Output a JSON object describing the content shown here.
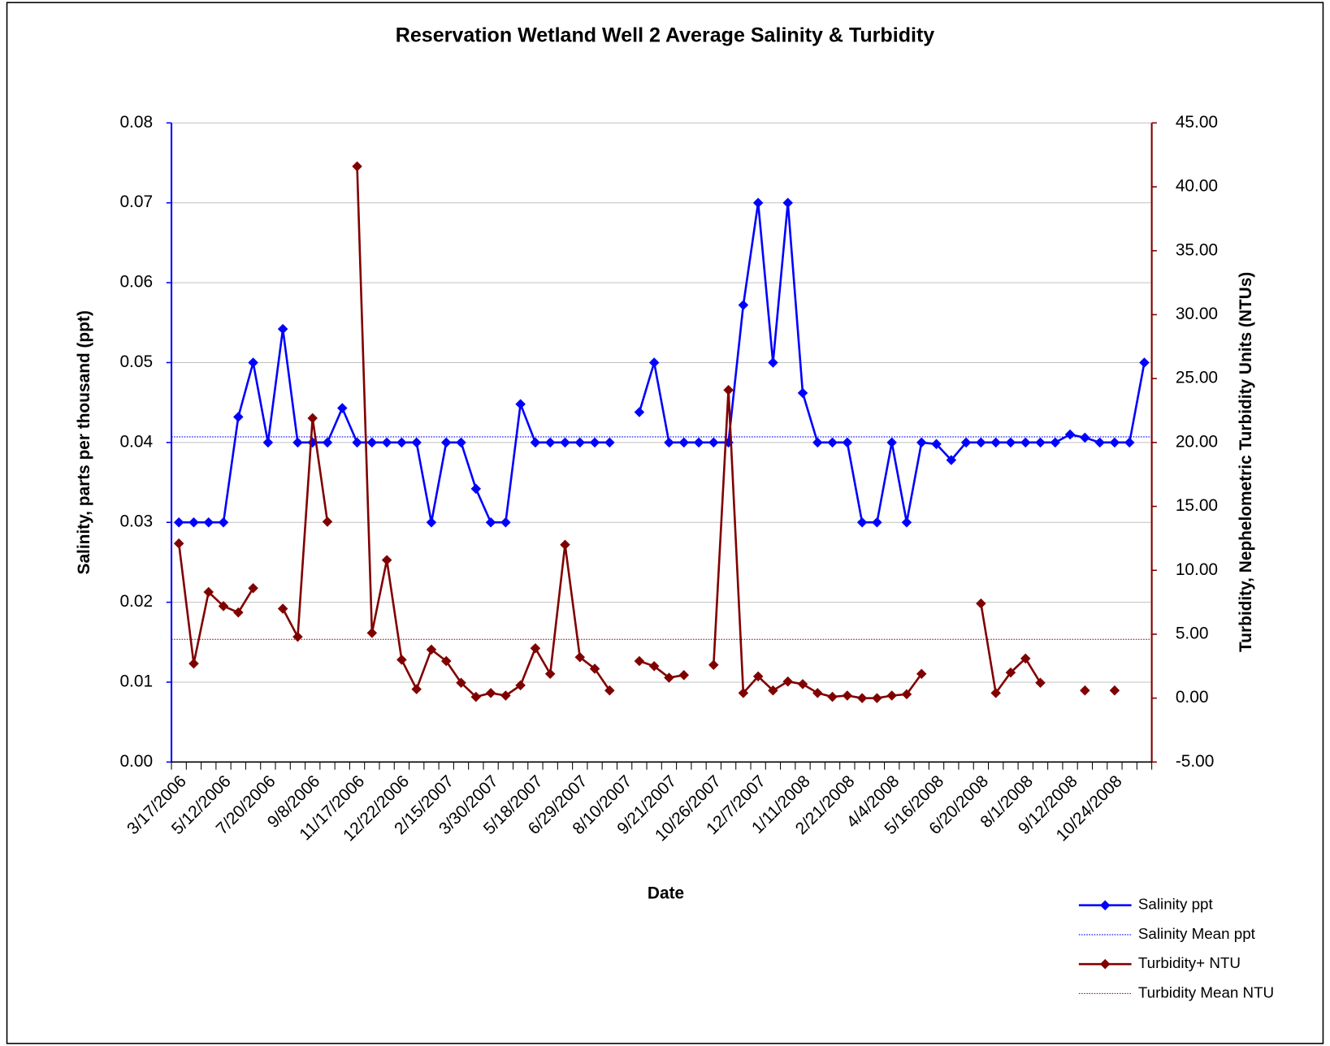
{
  "chart_data": {
    "type": "line",
    "title": "Reservation Wetland Well 2 Average Salinity & Turbidity",
    "x_label": "Date",
    "y_label": "Salinity, parts per thousand (ppt)",
    "y2_label": "Turbidity, Nephelometric Turbidity Units (NTUs)",
    "categories": [
      "3/17/2006",
      null,
      null,
      "5/12/2006",
      null,
      null,
      "7/20/2006",
      null,
      null,
      "9/8/2006",
      null,
      null,
      "11/17/2006",
      null,
      null,
      "12/22/2006",
      null,
      null,
      "2/15/2007",
      null,
      null,
      "3/30/2007",
      null,
      null,
      "5/18/2007",
      null,
      null,
      "6/29/2007",
      null,
      null,
      "8/10/2007",
      null,
      null,
      "9/21/2007",
      null,
      null,
      "10/26/2007",
      null,
      null,
      "12/7/2007",
      null,
      null,
      "1/11/2008",
      null,
      null,
      "2/21/2008",
      null,
      null,
      "4/4/2008",
      null,
      null,
      "5/16/2008",
      null,
      null,
      "6/20/2008",
      null,
      null,
      "8/1/2008",
      null,
      null,
      "9/12/2008",
      null,
      null,
      "10/24/2008",
      null,
      null
    ],
    "ylim": [
      0,
      0.08
    ],
    "yticks": [
      {
        "value": 0,
        "label": "0.00"
      },
      0.01,
      0.02,
      0.03,
      0.04,
      0.05,
      0.06,
      0.07,
      0.08
    ],
    "y2lim": [
      -5,
      45
    ],
    "y2ticks": [
      {
        "value": -5,
        "label": "-5.00"
      },
      {
        "value": 0,
        "label": "0.00"
      },
      {
        "value": 5,
        "label": "5.00"
      },
      {
        "value": 10,
        "label": "10.00"
      },
      {
        "value": 15,
        "label": "15.00"
      },
      {
        "value": 20,
        "label": "20.00"
      },
      {
        "value": 25,
        "label": "25.00"
      },
      {
        "value": 30,
        "label": "30.00"
      },
      {
        "value": 35,
        "label": "35.00"
      },
      {
        "value": 40,
        "label": "40.00"
      },
      {
        "value": 45,
        "label": "45.00"
      }
    ],
    "grid": true,
    "legend": "bottom-right",
    "series": [
      {
        "name": "Salinity ppt",
        "color": "#0000ff",
        "marker": "diamond",
        "values": [
          0.03,
          0.03,
          0.03,
          0.03,
          0.0432,
          0.05,
          0.04,
          0.0542,
          0.04,
          0.04,
          0.04,
          0.0443,
          0.04,
          0.04,
          0.04,
          0.04,
          0.04,
          0.03,
          0.04,
          0.04,
          0.0342,
          0.03,
          0.03,
          0.0448,
          0.04,
          0.04,
          0.04,
          0.04,
          0.04,
          0.04,
          null,
          0.0438,
          0.05,
          0.04,
          0.04,
          0.04,
          0.04,
          0.04,
          0.0572,
          0.07,
          0.05,
          0.07,
          0.0462,
          0.04,
          0.04,
          0.04,
          0.03,
          0.03,
          0.04,
          0.03,
          0.04,
          0.0398,
          0.0378,
          0.04,
          0.04,
          0.04,
          0.04,
          0.04,
          0.04,
          0.04,
          0.041,
          0.0406,
          0.04,
          0.04,
          0.04,
          0.05
        ]
      },
      {
        "name": "Salinity Mean ppt",
        "color": "#0000ff",
        "style": "dotted",
        "mean": 0.0407
      },
      {
        "name": "Turbidity+ NTU",
        "color": "#800000",
        "marker": "diamond",
        "axis": "y2",
        "values": [
          12.1,
          2.7,
          8.3,
          7.2,
          6.7,
          8.6,
          null,
          7.0,
          4.8,
          21.9,
          13.8,
          null,
          41.6,
          5.1,
          10.8,
          3.0,
          0.7,
          3.8,
          2.9,
          1.2,
          0.1,
          0.4,
          0.2,
          1.0,
          3.9,
          1.9,
          12.0,
          3.2,
          2.3,
          0.6,
          null,
          2.9,
          2.5,
          1.6,
          1.8,
          null,
          2.6,
          24.1,
          0.4,
          1.7,
          0.6,
          1.3,
          1.1,
          0.4,
          0.1,
          0.2,
          0.0,
          0.0,
          0.2,
          0.3,
          1.9,
          null,
          null,
          null,
          7.4,
          0.4,
          2.0,
          3.1,
          1.2,
          null,
          null,
          0.6,
          null,
          0.6,
          null,
          null
        ]
      },
      {
        "name": "Turbidity Mean NTU",
        "color": "#800000",
        "style": "dotted",
        "axis": "y2",
        "mean": 4.6
      }
    ]
  }
}
